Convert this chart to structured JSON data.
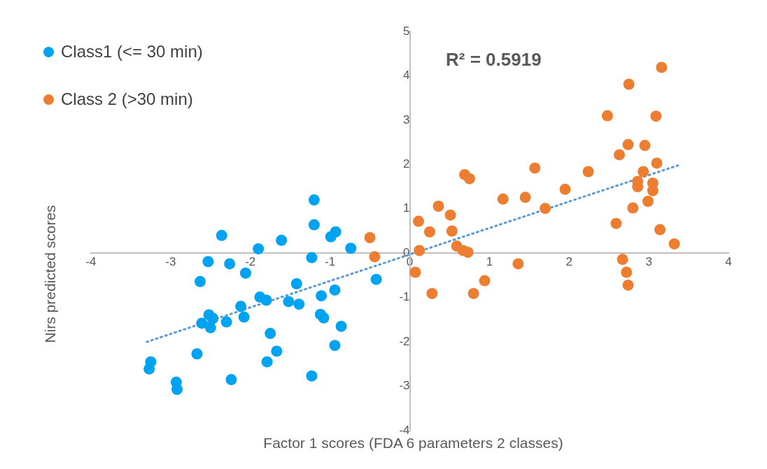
{
  "chart_data": {
    "type": "scatter",
    "xlabel": "Factor 1 scores (FDA 6 parameters 2 classes)",
    "ylabel": "Nirs  predicted scores",
    "annotations": [
      "R² = 0.5919"
    ],
    "legend": "top left",
    "marker": "circle",
    "grid": false,
    "xlim": [
      -4,
      4
    ],
    "xticks": [
      -4,
      -3,
      -2,
      -1,
      0,
      1,
      2,
      3,
      4
    ],
    "ylim": [
      -4,
      5
    ],
    "yticks": [
      -4,
      -3,
      -2,
      -1,
      0,
      1,
      2,
      3,
      4,
      5
    ],
    "series": [
      {
        "name": "Class1 (<= 30 min)",
        "color": "#00a2f2",
        "x": [
          -1.2,
          -1.2,
          -2.36,
          -1.61,
          -1.9,
          -0.93,
          -0.99,
          -0.74,
          -1.23,
          -2.53,
          -2.26,
          -2.06,
          -2.63,
          -1.42,
          -0.42,
          -0.94,
          -1.11,
          -1.88,
          -1.8,
          -1.52,
          -1.39,
          -2.12,
          -2.08,
          -1.12,
          -1.08,
          -2.52,
          -2.47,
          -2.61,
          -2.5,
          -2.3,
          -0.86,
          -1.75,
          -1.67,
          -0.94,
          -2.67,
          -1.79,
          -3.25,
          -3.27,
          -2.93,
          -2.92,
          -2.24,
          -1.23
        ],
        "values": [
          1.2,
          0.64,
          0.4,
          0.29,
          0.1,
          0.48,
          0.37,
          0.11,
          -0.1,
          -0.19,
          -0.24,
          -0.45,
          -0.64,
          -0.69,
          -0.59,
          -0.83,
          -0.96,
          -0.99,
          -1.06,
          -1.09,
          -1.15,
          -1.2,
          -1.44,
          -1.38,
          -1.46,
          -1.39,
          -1.47,
          -1.58,
          -1.68,
          -1.55,
          -1.65,
          -1.81,
          -2.21,
          -2.08,
          -2.27,
          -2.45,
          -2.45,
          -2.61,
          -2.91,
          -3.07,
          -2.85,
          -2.77
        ]
      },
      {
        "name": "Class 2 (>30 min)",
        "color": "#ed7d31",
        "x": [
          -0.5,
          -0.44,
          0.11,
          0.36,
          0.25,
          0.51,
          0.53,
          0.12,
          0.59,
          0.67,
          0.73,
          0.07,
          0.28,
          0.8,
          0.94,
          1.36,
          0.69,
          0.75,
          1.17,
          1.45,
          1.7,
          1.57,
          1.95,
          2.24,
          2.48,
          2.75,
          3.16,
          3.09,
          2.63,
          2.74,
          2.95,
          3.1,
          2.93,
          2.86,
          2.86,
          3.05,
          3.05,
          2.99,
          2.8,
          2.59,
          3.14,
          3.32,
          2.67,
          2.72,
          2.74
        ],
        "values": [
          0.35,
          -0.08,
          0.72,
          1.06,
          0.48,
          0.86,
          0.5,
          0.06,
          0.16,
          0.06,
          0.02,
          -0.43,
          -0.91,
          -0.91,
          -0.62,
          -0.24,
          1.77,
          1.68,
          1.22,
          1.26,
          1.01,
          1.92,
          1.44,
          1.84,
          3.1,
          3.81,
          4.19,
          3.09,
          2.22,
          2.45,
          2.43,
          2.03,
          1.84,
          1.62,
          1.5,
          1.58,
          1.41,
          1.17,
          1.02,
          0.67,
          0.53,
          0.21,
          -0.14,
          -0.43,
          -0.72
        ]
      },
      {
        "type": "line",
        "color": "#5b9bd5",
        "line_style": "dotted",
        "marker": "none",
        "x": [
          -3.3,
          3.4
        ],
        "values": [
          -2.0,
          2.0
        ]
      }
    ]
  }
}
